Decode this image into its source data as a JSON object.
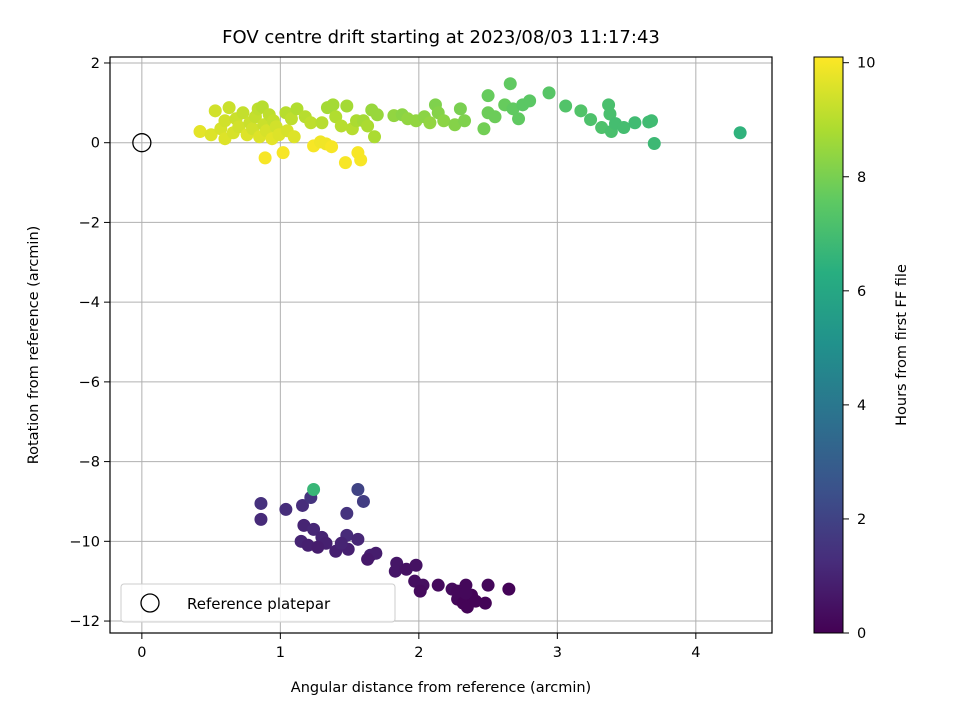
{
  "chart_data": {
    "type": "scatter",
    "title": "FOV centre drift starting at 2023/08/03 11:17:43",
    "xlabel": "Angular distance from reference (arcmin)",
    "ylabel": "Rotation from reference (arcmin)",
    "xlim": [
      -0.23,
      4.55
    ],
    "ylim": [
      -12.3,
      2.15
    ],
    "xticks": [
      0,
      1,
      2,
      3,
      4
    ],
    "xtick_labels": [
      "0",
      "1",
      "2",
      "3",
      "4"
    ],
    "yticks": [
      2,
      0,
      -2,
      -4,
      -6,
      -8,
      -10,
      -12
    ],
    "ytick_labels": [
      "2",
      "0",
      "−2",
      "−4",
      "−6",
      "−8",
      "−10",
      "−12"
    ],
    "grid": true,
    "colormap": "viridis",
    "colorbar": {
      "label": "Hours from first FF file",
      "range": [
        0,
        10.1
      ],
      "ticks": [
        0,
        2,
        4,
        6,
        8,
        10
      ],
      "tick_labels": [
        "0",
        "2",
        "4",
        "6",
        "8",
        "10"
      ]
    },
    "legend": {
      "placement": "lower-left",
      "entries": [
        {
          "label": "Reference platepar",
          "marker": "open-circle"
        }
      ]
    },
    "reference_point": {
      "x": 0,
      "y": 0
    },
    "series": [
      {
        "marker": "filled-circle",
        "color_by": "hours",
        "points": [
          {
            "x": 0.86,
            "y": -9.05,
            "c": 1.4
          },
          {
            "x": 0.86,
            "y": -9.45,
            "c": 1.2
          },
          {
            "x": 1.04,
            "y": -9.2,
            "c": 1.3
          },
          {
            "x": 1.16,
            "y": -9.1,
            "c": 1.3
          },
          {
            "x": 1.22,
            "y": -8.9,
            "c": 1.5
          },
          {
            "x": 1.24,
            "y": -8.7,
            "c": 6.7
          },
          {
            "x": 1.17,
            "y": -9.6,
            "c": 1.0
          },
          {
            "x": 1.24,
            "y": -9.7,
            "c": 1.1
          },
          {
            "x": 1.15,
            "y": -10.0,
            "c": 1.0
          },
          {
            "x": 1.2,
            "y": -10.1,
            "c": 0.9
          },
          {
            "x": 1.3,
            "y": -9.9,
            "c": 1.0
          },
          {
            "x": 1.33,
            "y": -10.05,
            "c": 0.9
          },
          {
            "x": 1.27,
            "y": -10.15,
            "c": 0.8
          },
          {
            "x": 1.4,
            "y": -10.25,
            "c": 0.9
          },
          {
            "x": 1.48,
            "y": -9.3,
            "c": 1.5
          },
          {
            "x": 1.56,
            "y": -8.7,
            "c": 2.0
          },
          {
            "x": 1.6,
            "y": -9.0,
            "c": 1.8
          },
          {
            "x": 1.48,
            "y": -9.85,
            "c": 1.2
          },
          {
            "x": 1.56,
            "y": -9.95,
            "c": 1.1
          },
          {
            "x": 1.49,
            "y": -10.2,
            "c": 0.9
          },
          {
            "x": 1.44,
            "y": -10.05,
            "c": 1.0
          },
          {
            "x": 1.65,
            "y": -10.35,
            "c": 0.9
          },
          {
            "x": 1.69,
            "y": -10.3,
            "c": 0.8
          },
          {
            "x": 1.63,
            "y": -10.45,
            "c": 0.7
          },
          {
            "x": 1.84,
            "y": -10.55,
            "c": 0.6
          },
          {
            "x": 1.83,
            "y": -10.75,
            "c": 0.6
          },
          {
            "x": 1.91,
            "y": -10.7,
            "c": 0.5
          },
          {
            "x": 1.98,
            "y": -10.6,
            "c": 0.5
          },
          {
            "x": 1.97,
            "y": -11.0,
            "c": 0.4
          },
          {
            "x": 2.03,
            "y": -11.1,
            "c": 0.4
          },
          {
            "x": 2.01,
            "y": -11.25,
            "c": 0.3
          },
          {
            "x": 2.14,
            "y": -11.1,
            "c": 0.3
          },
          {
            "x": 2.24,
            "y": -11.2,
            "c": 0.3
          },
          {
            "x": 2.28,
            "y": -11.25,
            "c": 0.2
          },
          {
            "x": 2.34,
            "y": -11.1,
            "c": 0.2
          },
          {
            "x": 2.28,
            "y": -11.45,
            "c": 0.2
          },
          {
            "x": 2.32,
            "y": -11.55,
            "c": 0.1
          },
          {
            "x": 2.35,
            "y": -11.65,
            "c": 0.1
          },
          {
            "x": 2.38,
            "y": -11.35,
            "c": 0.1
          },
          {
            "x": 2.34,
            "y": -11.3,
            "c": 0.2
          },
          {
            "x": 2.41,
            "y": -11.5,
            "c": 0.1
          },
          {
            "x": 2.5,
            "y": -11.1,
            "c": 0.2
          },
          {
            "x": 2.48,
            "y": -11.55,
            "c": 0.1
          },
          {
            "x": 2.65,
            "y": -11.2,
            "c": 0.1
          },
          {
            "x": 0.42,
            "y": 0.28,
            "c": 9.7
          },
          {
            "x": 0.5,
            "y": 0.2,
            "c": 9.6
          },
          {
            "x": 0.53,
            "y": 0.8,
            "c": 9.4
          },
          {
            "x": 0.57,
            "y": 0.35,
            "c": 9.5
          },
          {
            "x": 0.6,
            "y": 0.1,
            "c": 9.6
          },
          {
            "x": 0.6,
            "y": 0.55,
            "c": 9.4
          },
          {
            "x": 0.63,
            "y": 0.88,
            "c": 9.3
          },
          {
            "x": 0.66,
            "y": 0.25,
            "c": 9.5
          },
          {
            "x": 0.68,
            "y": 0.6,
            "c": 9.3
          },
          {
            "x": 0.7,
            "y": 0.4,
            "c": 9.4
          },
          {
            "x": 0.73,
            "y": 0.75,
            "c": 9.2
          },
          {
            "x": 0.76,
            "y": 0.2,
            "c": 9.6
          },
          {
            "x": 0.78,
            "y": 0.5,
            "c": 9.3
          },
          {
            "x": 0.8,
            "y": 0.35,
            "c": 9.4
          },
          {
            "x": 0.82,
            "y": 0.65,
            "c": 9.2
          },
          {
            "x": 0.84,
            "y": 0.85,
            "c": 9.1
          },
          {
            "x": 0.85,
            "y": 0.15,
            "c": 9.6
          },
          {
            "x": 0.87,
            "y": 0.9,
            "c": 9.0
          },
          {
            "x": 0.88,
            "y": 0.45,
            "c": 9.3
          },
          {
            "x": 0.9,
            "y": 0.3,
            "c": 9.5
          },
          {
            "x": 0.89,
            "y": -0.38,
            "c": 10.0
          },
          {
            "x": 0.92,
            "y": 0.7,
            "c": 9.1
          },
          {
            "x": 0.94,
            "y": 0.1,
            "c": 9.7
          },
          {
            "x": 0.95,
            "y": 0.55,
            "c": 9.2
          },
          {
            "x": 0.97,
            "y": 0.4,
            "c": 9.4
          },
          {
            "x": 0.99,
            "y": 0.2,
            "c": 9.6
          },
          {
            "x": 1.02,
            "y": -0.25,
            "c": 10.0
          },
          {
            "x": 1.04,
            "y": 0.75,
            "c": 9.0
          },
          {
            "x": 1.05,
            "y": 0.3,
            "c": 9.5
          },
          {
            "x": 1.08,
            "y": 0.6,
            "c": 9.1
          },
          {
            "x": 1.1,
            "y": 0.15,
            "c": 9.6
          },
          {
            "x": 1.12,
            "y": 0.85,
            "c": 8.9
          },
          {
            "x": 1.18,
            "y": 0.65,
            "c": 9.0
          },
          {
            "x": 1.22,
            "y": 0.5,
            "c": 9.1
          },
          {
            "x": 1.24,
            "y": -0.08,
            "c": 10.0
          },
          {
            "x": 1.29,
            "y": 0.02,
            "c": 9.9
          },
          {
            "x": 1.33,
            "y": -0.03,
            "c": 9.9
          },
          {
            "x": 1.37,
            "y": -0.1,
            "c": 10.0
          },
          {
            "x": 1.3,
            "y": 0.5,
            "c": 9.0
          },
          {
            "x": 1.34,
            "y": 0.88,
            "c": 8.7
          },
          {
            "x": 1.38,
            "y": 0.95,
            "c": 8.7
          },
          {
            "x": 1.4,
            "y": 0.65,
            "c": 8.9
          },
          {
            "x": 1.44,
            "y": 0.42,
            "c": 9.0
          },
          {
            "x": 1.47,
            "y": -0.5,
            "c": 10.0
          },
          {
            "x": 1.48,
            "y": 0.92,
            "c": 8.7
          },
          {
            "x": 1.52,
            "y": 0.35,
            "c": 9.0
          },
          {
            "x": 1.55,
            "y": 0.55,
            "c": 8.8
          },
          {
            "x": 1.56,
            "y": -0.25,
            "c": 10.0
          },
          {
            "x": 1.58,
            "y": -0.43,
            "c": 10.0
          },
          {
            "x": 1.6,
            "y": 0.55,
            "c": 8.7
          },
          {
            "x": 1.63,
            "y": 0.42,
            "c": 8.8
          },
          {
            "x": 1.66,
            "y": 0.82,
            "c": 8.5
          },
          {
            "x": 1.68,
            "y": 0.15,
            "c": 8.8
          },
          {
            "x": 1.7,
            "y": 0.7,
            "c": 8.5
          },
          {
            "x": 1.82,
            "y": 0.68,
            "c": 8.4
          },
          {
            "x": 1.88,
            "y": 0.7,
            "c": 8.3
          },
          {
            "x": 1.92,
            "y": 0.6,
            "c": 8.4
          },
          {
            "x": 1.98,
            "y": 0.55,
            "c": 8.4
          },
          {
            "x": 2.04,
            "y": 0.65,
            "c": 8.3
          },
          {
            "x": 2.08,
            "y": 0.5,
            "c": 8.4
          },
          {
            "x": 2.12,
            "y": 0.95,
            "c": 8.1
          },
          {
            "x": 2.14,
            "y": 0.75,
            "c": 8.2
          },
          {
            "x": 2.18,
            "y": 0.55,
            "c": 8.3
          },
          {
            "x": 2.26,
            "y": 0.45,
            "c": 8.2
          },
          {
            "x": 2.3,
            "y": 0.85,
            "c": 8.0
          },
          {
            "x": 2.33,
            "y": 0.55,
            "c": 8.1
          },
          {
            "x": 2.47,
            "y": 0.35,
            "c": 7.9
          },
          {
            "x": 2.5,
            "y": 0.75,
            "c": 7.8
          },
          {
            "x": 2.55,
            "y": 0.65,
            "c": 7.8
          },
          {
            "x": 2.5,
            "y": 1.18,
            "c": 7.7
          },
          {
            "x": 2.62,
            "y": 0.95,
            "c": 7.7
          },
          {
            "x": 2.66,
            "y": 1.48,
            "c": 7.6
          },
          {
            "x": 2.68,
            "y": 0.85,
            "c": 7.6
          },
          {
            "x": 2.72,
            "y": 0.6,
            "c": 7.6
          },
          {
            "x": 2.75,
            "y": 0.95,
            "c": 7.5
          },
          {
            "x": 2.8,
            "y": 1.05,
            "c": 7.5
          },
          {
            "x": 2.94,
            "y": 1.25,
            "c": 7.4
          },
          {
            "x": 3.06,
            "y": 0.92,
            "c": 7.3
          },
          {
            "x": 3.17,
            "y": 0.8,
            "c": 7.3
          },
          {
            "x": 3.24,
            "y": 0.58,
            "c": 7.2
          },
          {
            "x": 3.32,
            "y": 0.38,
            "c": 7.2
          },
          {
            "x": 3.37,
            "y": 0.95,
            "c": 7.1
          },
          {
            "x": 3.38,
            "y": 0.72,
            "c": 7.1
          },
          {
            "x": 3.39,
            "y": 0.28,
            "c": 7.1
          },
          {
            "x": 3.42,
            "y": 0.48,
            "c": 7.0
          },
          {
            "x": 3.48,
            "y": 0.38,
            "c": 7.0
          },
          {
            "x": 3.56,
            "y": 0.5,
            "c": 6.9
          },
          {
            "x": 3.66,
            "y": 0.52,
            "c": 6.9
          },
          {
            "x": 3.68,
            "y": 0.55,
            "c": 6.9
          },
          {
            "x": 3.7,
            "y": -0.02,
            "c": 6.8
          },
          {
            "x": 4.32,
            "y": 0.25,
            "c": 6.5
          }
        ]
      }
    ]
  }
}
